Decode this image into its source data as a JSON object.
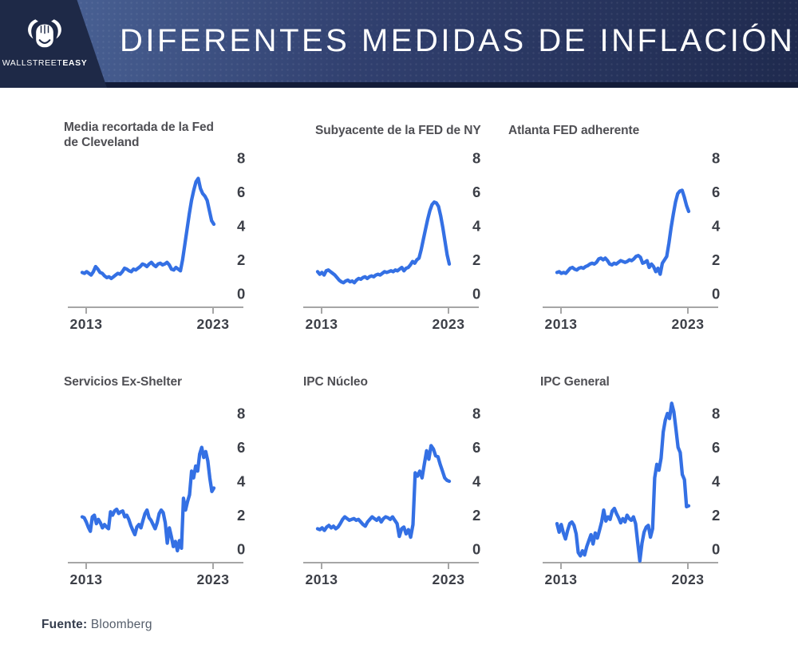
{
  "header": {
    "title": "DIFERENTES MEDIDAS DE INFLACIÓN",
    "logo": {
      "icon": "bull-logo-icon",
      "brand_prefix": "WALLSTREET",
      "brand_suffix": "EASY"
    },
    "colors": {
      "gradient_left": "#4e689c",
      "gradient_right": "#1f2a4e",
      "panel": "#1e2947",
      "bottom_strip": "#131c38",
      "title_text": "#ffffff"
    }
  },
  "styles": {
    "line_color": "#3470e4",
    "axis_color": "#a6a6a6",
    "label_color": "#3c3f47",
    "chart_title_color": "#4f4f54",
    "background": "#ffffff"
  },
  "footer": {
    "source_label": "Fuente:",
    "source_value": "Bloomberg"
  },
  "chart_data": [
    {
      "type": "line",
      "title": "Media recortada de la Fed\nde Cleveland",
      "x_range": [
        2013,
        2023
      ],
      "xticks": [
        "2013",
        "2023"
      ],
      "yticks": [
        8,
        6,
        4,
        2,
        0
      ],
      "ylim": [
        -1,
        9
      ],
      "grid": false,
      "values": [
        1.25,
        1.2,
        1.3,
        1.2,
        1.1,
        1.3,
        1.6,
        1.45,
        1.25,
        1.2,
        1.05,
        0.95,
        1.0,
        0.9,
        1.0,
        1.1,
        1.2,
        1.15,
        1.3,
        1.5,
        1.45,
        1.35,
        1.3,
        1.45,
        1.4,
        1.5,
        1.6,
        1.75,
        1.7,
        1.6,
        1.75,
        1.85,
        1.7,
        1.6,
        1.75,
        1.8,
        1.7,
        1.75,
        1.85,
        1.7,
        1.45,
        1.4,
        1.55,
        1.45,
        1.35,
        2.0,
        2.9,
        3.8,
        4.7,
        5.5,
        6.1,
        6.6,
        6.8,
        6.2,
        5.9,
        5.75,
        5.5,
        4.9,
        4.3,
        4.1
      ]
    },
    {
      "type": "line",
      "title": "Subyacente de la FED de NY",
      "x_range": [
        2013,
        2023
      ],
      "xticks": [
        "2013",
        "2023"
      ],
      "yticks": [
        8,
        6,
        4,
        2,
        0
      ],
      "ylim": [
        -1,
        9
      ],
      "grid": false,
      "values": [
        1.3,
        1.15,
        1.25,
        1.1,
        1.35,
        1.4,
        1.3,
        1.2,
        1.1,
        0.95,
        0.8,
        0.7,
        0.65,
        0.75,
        0.8,
        0.7,
        0.75,
        0.65,
        0.8,
        0.9,
        0.85,
        0.95,
        1.0,
        0.9,
        1.0,
        1.05,
        1.0,
        1.1,
        1.15,
        1.1,
        1.2,
        1.3,
        1.25,
        1.3,
        1.35,
        1.3,
        1.4,
        1.35,
        1.45,
        1.55,
        1.35,
        1.5,
        1.55,
        1.7,
        1.9,
        1.8,
        2.0,
        2.1,
        2.6,
        3.2,
        3.8,
        4.4,
        4.9,
        5.25,
        5.4,
        5.35,
        5.15,
        4.6,
        3.9,
        3.1,
        2.3,
        1.75
      ]
    },
    {
      "type": "line",
      "title": "Atlanta FED adherente",
      "x_range": [
        2013,
        2023
      ],
      "xticks": [
        "2013",
        "2023"
      ],
      "yticks": [
        8,
        6,
        4,
        2,
        0
      ],
      "ylim": [
        -1,
        9
      ],
      "grid": false,
      "values": [
        1.25,
        1.3,
        1.2,
        1.25,
        1.2,
        1.35,
        1.5,
        1.55,
        1.45,
        1.4,
        1.5,
        1.55,
        1.5,
        1.6,
        1.65,
        1.75,
        1.8,
        1.75,
        1.85,
        2.05,
        2.1,
        2.0,
        2.1,
        1.95,
        1.75,
        1.7,
        1.8,
        1.75,
        1.85,
        1.95,
        1.9,
        1.85,
        1.9,
        2.0,
        1.95,
        2.05,
        2.2,
        2.25,
        2.15,
        1.8,
        1.85,
        1.95,
        1.55,
        1.75,
        1.6,
        1.3,
        1.5,
        1.15,
        1.8,
        2.0,
        2.2,
        3.0,
        3.9,
        4.7,
        5.4,
        5.9,
        6.05,
        6.1,
        5.7,
        5.2,
        4.85
      ]
    },
    {
      "type": "line",
      "title": "Servicios Ex-Shelter",
      "x_range": [
        2013,
        2023
      ],
      "xticks": [
        "2013",
        "2023"
      ],
      "yticks": [
        8,
        6,
        4,
        2,
        0
      ],
      "ylim": [
        -1,
        9
      ],
      "grid": false,
      "values": [
        1.9,
        1.85,
        1.6,
        1.3,
        1.05,
        1.9,
        2.0,
        1.5,
        1.75,
        1.55,
        1.25,
        1.45,
        1.3,
        1.2,
        2.2,
        2.0,
        2.25,
        2.35,
        2.1,
        2.2,
        2.25,
        1.9,
        2.0,
        1.75,
        1.4,
        1.1,
        0.85,
        1.3,
        1.45,
        1.25,
        1.7,
        2.1,
        2.3,
        1.85,
        1.7,
        1.45,
        1.2,
        1.55,
        2.1,
        2.3,
        2.15,
        1.55,
        0.35,
        1.25,
        0.75,
        0.15,
        0.45,
        -0.1,
        0.5,
        0.05,
        3.0,
        2.3,
        2.8,
        3.2,
        4.6,
        4.2,
        4.9,
        4.6,
        5.6,
        6.0,
        5.4,
        5.75,
        5.2,
        4.2,
        3.4,
        3.6
      ]
    },
    {
      "type": "line",
      "title": "IPC Núcleo",
      "x_range": [
        2013,
        2023
      ],
      "xticks": [
        "2013",
        "2023"
      ],
      "yticks": [
        8,
        6,
        4,
        2,
        0
      ],
      "ylim": [
        -1,
        9
      ],
      "grid": false,
      "values": [
        1.2,
        1.15,
        1.25,
        1.1,
        1.3,
        1.4,
        1.25,
        1.35,
        1.2,
        1.3,
        1.5,
        1.75,
        1.9,
        1.8,
        1.7,
        1.75,
        1.8,
        1.7,
        1.75,
        1.6,
        1.45,
        1.35,
        1.6,
        1.75,
        1.9,
        1.8,
        1.7,
        1.85,
        1.6,
        1.8,
        1.9,
        1.85,
        1.75,
        1.9,
        1.7,
        1.5,
        0.75,
        1.2,
        1.3,
        0.9,
        1.15,
        0.7,
        1.45,
        4.5,
        4.3,
        4.6,
        4.2,
        5.0,
        5.8,
        5.3,
        6.1,
        5.9,
        5.5,
        5.45,
        5.0,
        4.6,
        4.2,
        4.05,
        4.0
      ]
    },
    {
      "type": "line",
      "title": "IPC General",
      "x_range": [
        2013,
        2023
      ],
      "xticks": [
        "2013",
        "2023"
      ],
      "yticks": [
        8,
        6,
        4,
        2,
        0
      ],
      "ylim": [
        -1,
        9
      ],
      "grid": false,
      "values": [
        1.5,
        1.0,
        1.45,
        0.95,
        0.6,
        1.1,
        1.5,
        1.6,
        1.4,
        0.9,
        -0.2,
        -0.4,
        -0.1,
        -0.35,
        0.15,
        0.5,
        0.85,
        0.3,
        0.95,
        0.65,
        1.1,
        1.6,
        2.3,
        1.65,
        1.9,
        1.75,
        2.25,
        2.4,
        2.1,
        1.85,
        1.55,
        1.8,
        1.6,
        2.0,
        1.8,
        1.7,
        1.9,
        1.5,
        0.4,
        -0.7,
        0.35,
        1.0,
        1.3,
        1.4,
        0.7,
        1.2,
        4.2,
        5.0,
        4.65,
        5.35,
        6.9,
        7.6,
        8.0,
        7.7,
        8.6,
        8.1,
        7.1,
        6.0,
        5.7,
        4.4,
        4.1,
        2.5,
        2.55
      ]
    }
  ]
}
